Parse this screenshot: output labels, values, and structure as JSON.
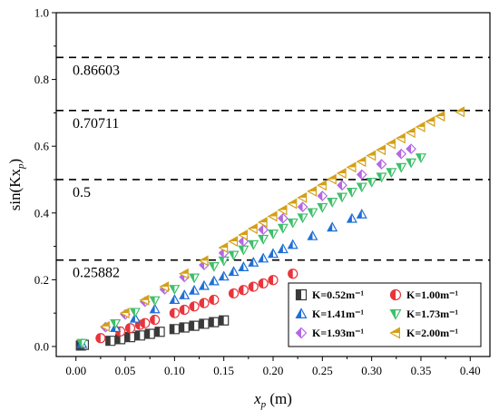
{
  "chart_data": {
    "type": "scatter",
    "xlabel_main": "x",
    "xlabel_sub": "p",
    "xlabel_unit": " (m)",
    "ylabel_main": "sin(Kx",
    "ylabel_sub": "p",
    "ylabel_close": ")",
    "xlim": [
      -0.02,
      0.42
    ],
    "ylim": [
      -0.03,
      1.0
    ],
    "x_ticks": [
      0.0,
      0.05,
      0.1,
      0.15,
      0.2,
      0.25,
      0.3,
      0.35,
      0.4
    ],
    "x_tick_labels": [
      "0.00",
      "0.05",
      "0.10",
      "0.15",
      "0.20",
      "0.25",
      "0.30",
      "0.35",
      "0.40"
    ],
    "y_ticks": [
      0.0,
      0.2,
      0.4,
      0.6,
      0.8,
      1.0
    ],
    "y_tick_labels": [
      "0.0",
      "0.2",
      "0.4",
      "0.6",
      "0.8",
      "1.0"
    ],
    "grid": false,
    "reference_lines": [
      {
        "y": 0.86603,
        "label": "0.86603"
      },
      {
        "y": 0.70711,
        "label": "0.70711"
      },
      {
        "y": 0.5,
        "label": "0.5"
      },
      {
        "y": 0.25882,
        "label": "0.25882"
      }
    ],
    "legend_position": "bottom-right",
    "series": [
      {
        "name": "K=0.52m⁻¹",
        "symbol": "square",
        "color": "#3a3a3a",
        "x": [
          0.005,
          0.008,
          0.035,
          0.045,
          0.055,
          0.065,
          0.075,
          0.085,
          0.1,
          0.11,
          0.12,
          0.13,
          0.14,
          0.15
        ],
        "y": [
          0.003,
          0.005,
          0.017,
          0.022,
          0.028,
          0.033,
          0.038,
          0.044,
          0.052,
          0.057,
          0.062,
          0.068,
          0.073,
          0.078
        ]
      },
      {
        "name": "K=1.00m⁻¹",
        "symbol": "circle",
        "color": "#e8343a",
        "x": [
          0.025,
          0.045,
          0.055,
          0.065,
          0.07,
          0.08,
          0.1,
          0.11,
          0.12,
          0.13,
          0.14,
          0.16,
          0.17,
          0.18,
          0.19,
          0.2,
          0.22
        ],
        "y": [
          0.025,
          0.045,
          0.055,
          0.065,
          0.07,
          0.08,
          0.1,
          0.11,
          0.12,
          0.13,
          0.14,
          0.159,
          0.169,
          0.179,
          0.189,
          0.199,
          0.218
        ]
      },
      {
        "name": "K=1.41m⁻¹",
        "symbol": "triangle-up",
        "color": "#1f6fd6",
        "x": [
          0.006,
          0.04,
          0.06,
          0.08,
          0.1,
          0.11,
          0.12,
          0.13,
          0.14,
          0.15,
          0.16,
          0.17,
          0.18,
          0.19,
          0.2,
          0.21,
          0.22,
          0.24,
          0.26,
          0.28,
          0.29
        ],
        "y": [
          0.008,
          0.056,
          0.084,
          0.112,
          0.14,
          0.154,
          0.168,
          0.182,
          0.196,
          0.21,
          0.224,
          0.238,
          0.252,
          0.264,
          0.278,
          0.292,
          0.305,
          0.331,
          0.357,
          0.383,
          0.396
        ]
      },
      {
        "name": "K=1.73m⁻¹",
        "symbol": "triangle-down",
        "color": "#3fbf6a",
        "x": [
          0.006,
          0.04,
          0.06,
          0.08,
          0.1,
          0.12,
          0.14,
          0.15,
          0.16,
          0.17,
          0.18,
          0.19,
          0.2,
          0.21,
          0.22,
          0.23,
          0.24,
          0.25,
          0.26,
          0.27,
          0.28,
          0.29,
          0.3,
          0.31,
          0.32,
          0.33,
          0.34,
          0.35
        ],
        "y": [
          0.01,
          0.069,
          0.103,
          0.138,
          0.172,
          0.206,
          0.24,
          0.257,
          0.274,
          0.29,
          0.306,
          0.322,
          0.338,
          0.355,
          0.371,
          0.386,
          0.402,
          0.417,
          0.433,
          0.448,
          0.463,
          0.478,
          0.493,
          0.508,
          0.522,
          0.537,
          0.551,
          0.566
        ]
      },
      {
        "name": "K=1.93m⁻¹",
        "symbol": "diamond",
        "color": "#b468e3",
        "x": [
          0.03,
          0.05,
          0.07,
          0.09,
          0.11,
          0.13,
          0.15,
          0.17,
          0.19,
          0.21,
          0.23,
          0.25,
          0.27,
          0.29,
          0.31,
          0.33,
          0.34
        ],
        "y": [
          0.058,
          0.096,
          0.134,
          0.171,
          0.208,
          0.244,
          0.28,
          0.315,
          0.35,
          0.384,
          0.418,
          0.451,
          0.483,
          0.515,
          0.546,
          0.577,
          0.592
        ]
      },
      {
        "name": "K=2.00m⁻¹",
        "symbol": "triangle-left",
        "color": "#d4a017",
        "x": [
          0.03,
          0.05,
          0.07,
          0.09,
          0.11,
          0.13,
          0.15,
          0.16,
          0.17,
          0.18,
          0.19,
          0.2,
          0.21,
          0.22,
          0.23,
          0.24,
          0.25,
          0.26,
          0.27,
          0.28,
          0.29,
          0.3,
          0.31,
          0.32,
          0.33,
          0.34,
          0.35,
          0.36,
          0.37,
          0.39
        ],
        "y": [
          0.06,
          0.1,
          0.139,
          0.179,
          0.218,
          0.257,
          0.296,
          0.315,
          0.334,
          0.353,
          0.372,
          0.39,
          0.409,
          0.428,
          0.446,
          0.465,
          0.483,
          0.501,
          0.519,
          0.537,
          0.554,
          0.572,
          0.589,
          0.607,
          0.624,
          0.641,
          0.658,
          0.674,
          0.69,
          0.703
        ]
      }
    ]
  }
}
